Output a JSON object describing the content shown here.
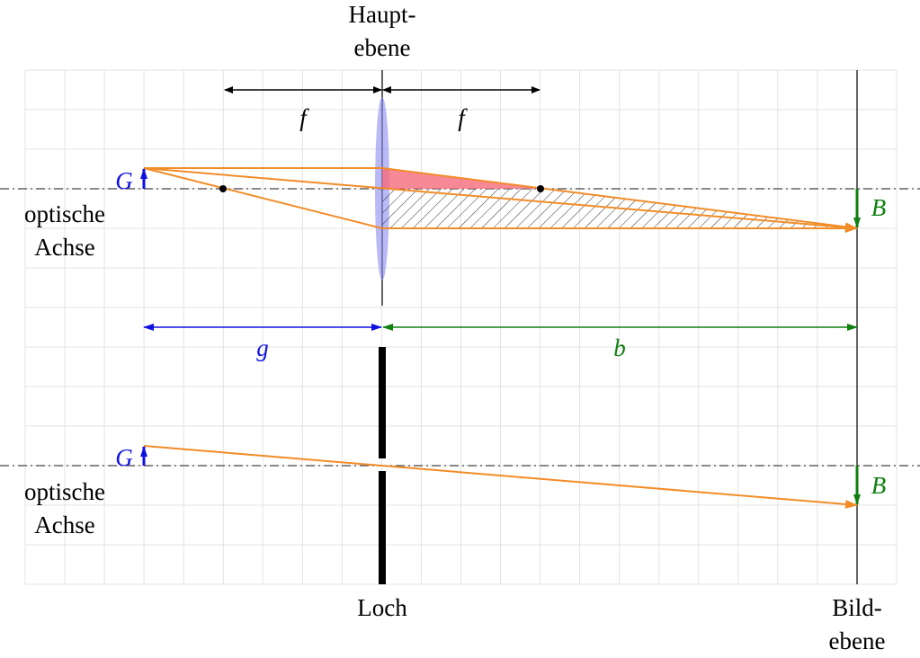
{
  "top_label": [
    "Haupt-",
    "ebene"
  ],
  "focal_labels": [
    "f",
    "f"
  ],
  "upper": {
    "object": "G",
    "image": "B",
    "axis": [
      "optische",
      "Achse"
    ]
  },
  "distances": {
    "object": "g",
    "image": "b"
  },
  "lower": {
    "object": "G",
    "image": "B",
    "axis": [
      "optische",
      "Achse"
    ]
  },
  "bottom_labels": {
    "hole": "Loch",
    "image_plane": [
      "Bild-",
      "ebene"
    ]
  }
}
